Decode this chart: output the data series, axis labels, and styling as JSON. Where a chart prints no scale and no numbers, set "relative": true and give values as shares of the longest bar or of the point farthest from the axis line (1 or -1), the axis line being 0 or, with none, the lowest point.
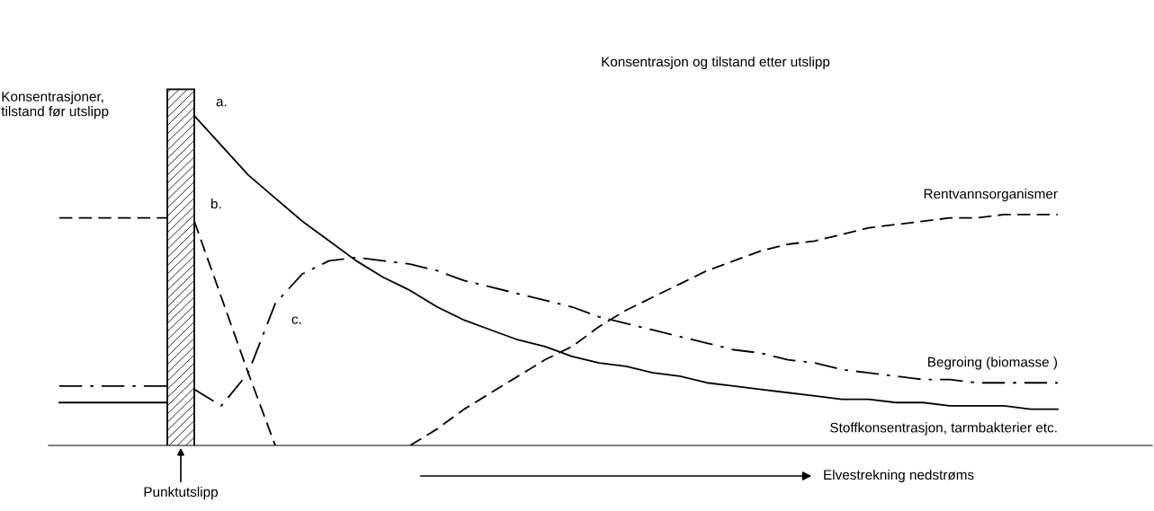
{
  "chart_data": {
    "type": "line",
    "relative": true,
    "title": "Konsentrasjon og tilstand etter utslipp",
    "xlabel": "Elvestrekning nedstrøms",
    "ylabel": "Konsentrasjoner,\ntilstand før utslipp",
    "categories": [
      null,
      null,
      null,
      null,
      null,
      null,
      null,
      null,
      null,
      null,
      null,
      null,
      null,
      null,
      null,
      null,
      null,
      null,
      null,
      null,
      null,
      null,
      null,
      null,
      null,
      null,
      null,
      null,
      null,
      null,
      null,
      null,
      null,
      null,
      null,
      null,
      null,
      null,
      null,
      null,
      null
    ],
    "series": [
      {
        "color": "#000000",
        "line_style": "solid",
        "values": [
          0.13,
          0.13,
          0.13,
          0.13,
          0.13,
          null,
          null,
          null,
          null,
          null,
          null,
          null,
          null,
          null,
          null,
          null,
          null,
          null,
          null,
          null,
          null,
          null,
          null,
          null,
          null,
          null,
          null,
          null,
          null,
          null,
          null,
          null,
          null,
          null,
          null,
          null,
          null,
          null,
          null,
          null,
          null
        ]
      },
      {
        "color": "#000000",
        "line_style": "dashed",
        "values": [
          0.69,
          0.69,
          0.69,
          0.69,
          0.69,
          null,
          null,
          null,
          null,
          null,
          null,
          null,
          null,
          null,
          null,
          null,
          null,
          null,
          null,
          null,
          null,
          null,
          null,
          null,
          null,
          null,
          null,
          null,
          null,
          null,
          null,
          null,
          null,
          null,
          null,
          null,
          null,
          null,
          null,
          null,
          null
        ]
      },
      {
        "color": "#000000",
        "line_style": "dashdot",
        "values": [
          0.18,
          0.18,
          0.18,
          0.18,
          0.18,
          null,
          null,
          null,
          null,
          null,
          null,
          null,
          null,
          null,
          null,
          null,
          null,
          null,
          null,
          null,
          null,
          null,
          null,
          null,
          null,
          null,
          null,
          null,
          null,
          null,
          null,
          null,
          null,
          null,
          null,
          null,
          null,
          null,
          null,
          null,
          null
        ]
      },
      {
        "name": "Stoffkonsentrasjon, tarmbakterier etc.",
        "color": "#000000",
        "line_style": "solid",
        "values": [
          null,
          null,
          null,
          null,
          null,
          1.0,
          0.91,
          0.82,
          0.75,
          0.68,
          0.62,
          0.56,
          0.51,
          0.47,
          0.42,
          0.38,
          0.35,
          0.32,
          0.3,
          0.27,
          0.25,
          0.24,
          0.22,
          0.21,
          0.19,
          0.18,
          0.17,
          0.16,
          0.15,
          0.14,
          0.14,
          0.13,
          0.13,
          0.12,
          0.12,
          0.12,
          0.11,
          0.11,
          null,
          null,
          null
        ]
      },
      {
        "color": "#000000",
        "line_style": "dashed",
        "values": [
          null,
          null,
          null,
          null,
          null,
          0.68,
          0.45,
          0.22,
          0.0,
          null,
          null,
          null,
          null,
          null,
          null,
          null,
          null,
          null,
          null,
          null,
          null,
          null,
          null,
          null,
          null,
          null,
          null,
          null,
          null,
          null,
          null,
          null,
          null,
          null,
          null,
          null,
          null,
          null,
          null,
          null,
          null
        ]
      },
      {
        "name": "Begroing (biomasse )",
        "color": "#000000",
        "line_style": "dashdot",
        "values": [
          null,
          null,
          null,
          null,
          null,
          0.17,
          0.12,
          0.22,
          0.43,
          0.52,
          0.56,
          0.57,
          0.56,
          0.55,
          0.53,
          0.5,
          0.48,
          0.46,
          0.44,
          0.42,
          0.39,
          0.37,
          0.35,
          0.33,
          0.31,
          0.29,
          0.28,
          0.26,
          0.25,
          0.23,
          0.22,
          0.21,
          0.2,
          0.2,
          0.19,
          0.19,
          0.19,
          0.19,
          null,
          null,
          null
        ]
      },
      {
        "name": "Rentvannsorganismer",
        "color": "#000000",
        "line_style": "dashed",
        "values": [
          null,
          null,
          null,
          null,
          null,
          null,
          null,
          null,
          null,
          null,
          null,
          null,
          null,
          0.0,
          0.05,
          0.11,
          0.16,
          0.21,
          0.26,
          0.3,
          0.36,
          0.41,
          0.45,
          0.49,
          0.53,
          0.56,
          0.59,
          0.61,
          0.62,
          0.64,
          0.66,
          0.67,
          0.68,
          0.69,
          0.69,
          0.7,
          0.7,
          0.7,
          null,
          null,
          null
        ]
      }
    ],
    "annotations": [
      "a.",
      "b.",
      "c.",
      "Punktutslipp"
    ],
    "marker": "none",
    "grid": false,
    "legend": false
  }
}
